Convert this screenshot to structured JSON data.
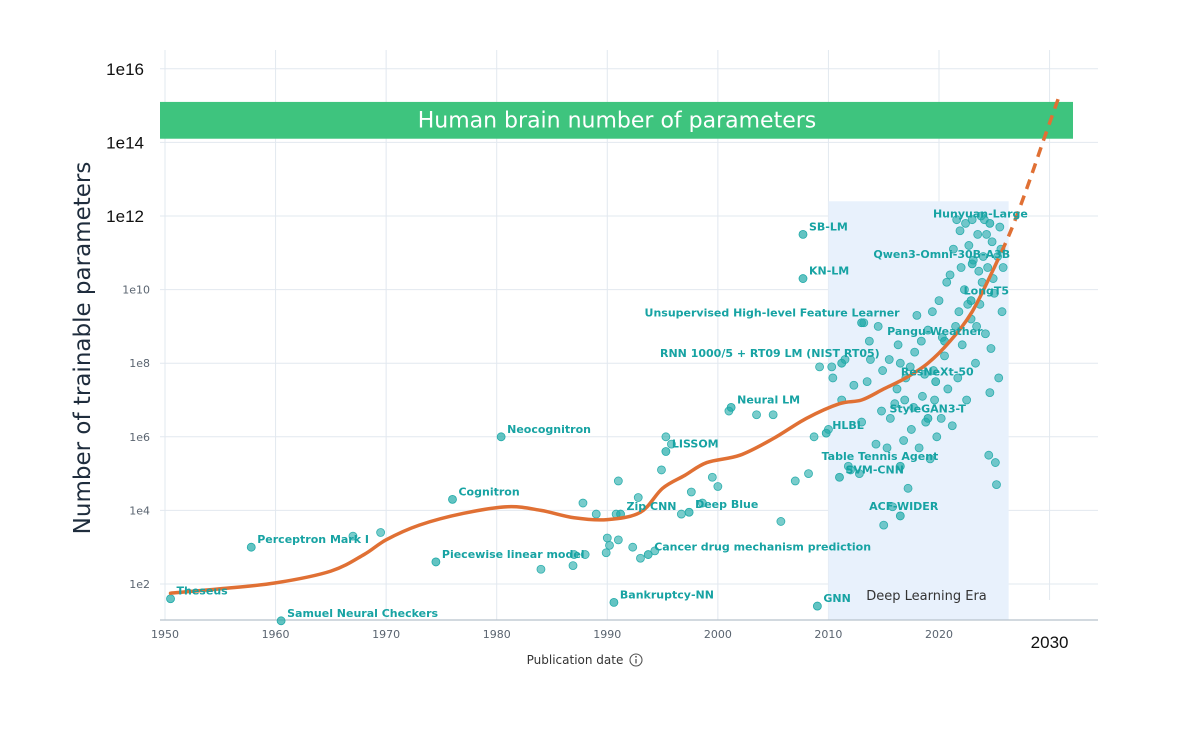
{
  "colors": {
    "point": "#20aaa8",
    "trend": "#e07034",
    "band": "#3ec47e",
    "era": "#e8f1fc",
    "grid": "#e2e8ef"
  },
  "chart_data": {
    "type": "scatter",
    "title": "",
    "xlabel": "Publication date",
    "ylabel": "Number of trainable parameters",
    "xlim": [
      1949,
      2034
    ],
    "ylim_log10": [
      0.95,
      16.45
    ],
    "grid": true,
    "x_ticks": [
      {
        "value": 1950,
        "label": "1950"
      },
      {
        "value": 1960,
        "label": "1960"
      },
      {
        "value": 1970,
        "label": "1970"
      },
      {
        "value": 1980,
        "label": "1980"
      },
      {
        "value": 1990,
        "label": "1990"
      },
      {
        "value": 2000,
        "label": "2000"
      },
      {
        "value": 2010,
        "label": "2010"
      },
      {
        "value": 2020,
        "label": "2020"
      }
    ],
    "x_tick_extra": {
      "value": 2030,
      "label": "2030"
    },
    "y_ticks_small": [
      {
        "log10": 2,
        "label": "1e2"
      },
      {
        "log10": 4,
        "label": "1e4"
      },
      {
        "log10": 6,
        "label": "1e6"
      },
      {
        "log10": 8,
        "label": "1e8"
      },
      {
        "log10": 10,
        "label": "1e10"
      }
    ],
    "y_ticks_big": [
      {
        "log10": 12,
        "label": "1e12"
      },
      {
        "log10": 14,
        "label": "1e14"
      },
      {
        "log10": 16,
        "label": "1e16"
      }
    ],
    "band": {
      "label": "Human brain number of parameters",
      "log10_low": 14.1,
      "log10_high": 15.1
    },
    "era": {
      "label": "Deep Learning Era",
      "x_start": 2010,
      "x_end": 2026.3,
      "log10_top": 12.4
    },
    "labeled_points": [
      {
        "name": "Theseus",
        "year": 1950.5,
        "log10": 1.6
      },
      {
        "name": "Perceptron Mark I",
        "year": 1957.8,
        "log10": 3.0
      },
      {
        "name": "Samuel Neural Checkers",
        "year": 1960.5,
        "log10": 1.0
      },
      {
        "name": "Cognitron",
        "year": 1976.0,
        "log10": 4.3
      },
      {
        "name": "Piecewise linear model",
        "year": 1974.5,
        "log10": 2.6
      },
      {
        "name": "Neocognitron",
        "year": 1980.4,
        "log10": 6.0
      },
      {
        "name": "Zip CNN",
        "year": 1991.2,
        "log10": 3.9
      },
      {
        "name": "LISSOM",
        "year": 1995.3,
        "log10": 5.6
      },
      {
        "name": "Bankruptcy-NN",
        "year": 1990.6,
        "log10": 1.5
      },
      {
        "name": "Cancer drug mechanism prediction",
        "year": 1993.7,
        "log10": 2.8
      },
      {
        "name": "Deep Blue",
        "year": 1997.4,
        "log10": 3.95
      },
      {
        "name": "Neural LM",
        "year": 2001.2,
        "log10": 6.8
      },
      {
        "name": "SVM-CNN",
        "year": 2011.0,
        "log10": 4.9
      },
      {
        "name": "SB-LM",
        "year": 2007.7,
        "log10": 11.5
      },
      {
        "name": "KN-LM",
        "year": 2007.7,
        "log10": 10.3
      },
      {
        "name": "Unsupervised High-level Feature Learner",
        "year": 2013.0,
        "log10": 9.1
      },
      {
        "name": "RNN 1000/5 + RT09 LM (NIST RT05)",
        "year": 2011.2,
        "log10": 8.0
      },
      {
        "name": "HLBL",
        "year": 2009.8,
        "log10": 6.1
      },
      {
        "name": "GNN",
        "year": 2009.0,
        "log10": 1.4
      },
      {
        "name": "Table Tennis Agent",
        "year": 2016.5,
        "log10": 5.2
      },
      {
        "name": "ACF-WIDER",
        "year": 2016.5,
        "log10": 3.85
      },
      {
        "name": "StyleGAN3-T",
        "year": 2019.0,
        "log10": 6.5
      },
      {
        "name": "ResNeXt-50",
        "year": 2019.7,
        "log10": 7.5
      },
      {
        "name": "Pangu-Weather",
        "year": 2020.5,
        "log10": 8.6
      },
      {
        "name": "LongT5",
        "year": 2022.9,
        "log10": 9.7
      },
      {
        "name": "Qwen3-Omni-30B-A3B",
        "year": 2023.0,
        "log10": 10.7
      },
      {
        "name": "Hunyuan-Large",
        "year": 2024.6,
        "log10": 11.8
      }
    ],
    "other_points": [
      [
        1969.5,
        3.4
      ],
      [
        1967,
        3.3
      ],
      [
        1984,
        2.4
      ],
      [
        1986.9,
        2.5
      ],
      [
        1987.0,
        2.8
      ],
      [
        1987.8,
        4.2
      ],
      [
        1988.0,
        2.8
      ],
      [
        1989.0,
        3.9
      ],
      [
        1989.9,
        2.85
      ],
      [
        1990.0,
        3.25
      ],
      [
        1990.2,
        3.05
      ],
      [
        1990.8,
        3.9
      ],
      [
        1991.0,
        3.2
      ],
      [
        1991.0,
        4.8
      ],
      [
        1992.3,
        3.0
      ],
      [
        1992.8,
        4.35
      ],
      [
        1993.0,
        2.7
      ],
      [
        1994.3,
        2.9
      ],
      [
        1994.9,
        5.1
      ],
      [
        1995.3,
        6.0
      ],
      [
        1995.8,
        5.8
      ],
      [
        1996.7,
        3.9
      ],
      [
        1997.6,
        4.5
      ],
      [
        1998.6,
        4.2
      ],
      [
        1999.5,
        4.9
      ],
      [
        2000.0,
        4.65
      ],
      [
        2001.0,
        6.7
      ],
      [
        2003.5,
        6.6
      ],
      [
        2005.0,
        6.6
      ],
      [
        2005.7,
        3.7
      ],
      [
        2007.0,
        4.8
      ],
      [
        2008.2,
        5.0
      ],
      [
        2008.7,
        6.0
      ],
      [
        2009.2,
        7.9
      ],
      [
        2010.0,
        6.2
      ],
      [
        2010.3,
        7.9
      ],
      [
        2010.4,
        7.6
      ],
      [
        2011.2,
        7.0
      ],
      [
        2011.5,
        8.1
      ],
      [
        2011.8,
        5.2
      ],
      [
        2012.0,
        5.1
      ],
      [
        2012.3,
        7.4
      ],
      [
        2012.8,
        5.0
      ],
      [
        2013.0,
        6.4
      ],
      [
        2013.2,
        9.1
      ],
      [
        2013.5,
        7.5
      ],
      [
        2013.8,
        8.1
      ],
      [
        2014.3,
        5.8
      ],
      [
        2014.5,
        9.0
      ],
      [
        2014.8,
        6.7
      ],
      [
        2015.0,
        3.6
      ],
      [
        2015.3,
        5.7
      ],
      [
        2015.5,
        8.1
      ],
      [
        2015.8,
        4.1
      ],
      [
        2016.0,
        6.9
      ],
      [
        2016.2,
        7.3
      ],
      [
        2016.5,
        8.0
      ],
      [
        2016.8,
        5.9
      ],
      [
        2017.0,
        7.6
      ],
      [
        2017.2,
        4.6
      ],
      [
        2017.5,
        6.2
      ],
      [
        2017.8,
        8.3
      ],
      [
        2018.0,
        9.3
      ],
      [
        2018.2,
        5.7
      ],
      [
        2018.5,
        7.1
      ],
      [
        2018.8,
        6.4
      ],
      [
        2019.0,
        8.9
      ],
      [
        2019.2,
        5.4
      ],
      [
        2019.5,
        7.8
      ],
      [
        2019.8,
        6.0
      ],
      [
        2020.0,
        9.7
      ],
      [
        2020.2,
        6.5
      ],
      [
        2020.5,
        8.2
      ],
      [
        2020.8,
        7.3
      ],
      [
        2021.0,
        10.4
      ],
      [
        2021.2,
        6.3
      ],
      [
        2021.5,
        9.0
      ],
      [
        2021.7,
        7.6
      ],
      [
        2021.9,
        11.6
      ],
      [
        2022.1,
        8.5
      ],
      [
        2022.3,
        10.0
      ],
      [
        2022.5,
        7.0
      ],
      [
        2022.7,
        11.2
      ],
      [
        2022.9,
        9.2
      ],
      [
        2023.1,
        10.8
      ],
      [
        2023.3,
        8.0
      ],
      [
        2023.5,
        11.5
      ],
      [
        2023.7,
        9.6
      ],
      [
        2023.9,
        10.2
      ],
      [
        2024.1,
        11.9
      ],
      [
        2024.2,
        8.8
      ],
      [
        2024.4,
        10.6
      ],
      [
        2024.5,
        5.5
      ],
      [
        2024.6,
        7.2
      ],
      [
        2024.8,
        11.3
      ],
      [
        2025.0,
        9.9
      ],
      [
        2025.1,
        5.3
      ],
      [
        2025.3,
        10.9
      ],
      [
        2025.5,
        11.7
      ],
      [
        2025.7,
        9.4
      ],
      [
        2025.2,
        4.7
      ],
      [
        2021.3,
        11.1
      ],
      [
        2022.0,
        10.6
      ],
      [
        2022.6,
        9.6
      ],
      [
        2023.0,
        11.9
      ],
      [
        2023.6,
        10.5
      ],
      [
        2024.3,
        11.5
      ],
      [
        2024.9,
        10.3
      ],
      [
        2025.6,
        11.1
      ],
      [
        2021.8,
        9.4
      ],
      [
        2020.7,
        10.2
      ],
      [
        2019.4,
        9.4
      ],
      [
        2023.4,
        9.0
      ],
      [
        2024.7,
        8.4
      ],
      [
        2025.4,
        7.6
      ],
      [
        2020.3,
        8.7
      ],
      [
        2018.4,
        8.6
      ],
      [
        2017.4,
        7.9
      ],
      [
        2016.9,
        7.0
      ],
      [
        2015.6,
        6.5
      ],
      [
        2014.9,
        7.8
      ],
      [
        2022.4,
        11.8
      ],
      [
        2023.8,
        12.0
      ],
      [
        2021.6,
        11.9
      ],
      [
        2024.0,
        10.9
      ],
      [
        2025.8,
        10.6
      ],
      [
        2019.6,
        7.0
      ],
      [
        2018.7,
        7.7
      ],
      [
        2017.7,
        6.8
      ],
      [
        2016.3,
        8.5
      ],
      [
        2013.7,
        8.6
      ]
    ],
    "trend_line": [
      [
        1950.5,
        1.75
      ],
      [
        1955,
        1.87
      ],
      [
        1960,
        2.03
      ],
      [
        1965,
        2.35
      ],
      [
        1968,
        2.8
      ],
      [
        1970,
        3.2
      ],
      [
        1973,
        3.6
      ],
      [
        1977,
        3.92
      ],
      [
        1981,
        4.1
      ],
      [
        1984,
        4.0
      ],
      [
        1987,
        3.8
      ],
      [
        1990,
        3.75
      ],
      [
        1993,
        3.95
      ],
      [
        1995,
        4.6
      ],
      [
        1997,
        4.95
      ],
      [
        1999,
        5.3
      ],
      [
        2002,
        5.5
      ],
      [
        2005,
        5.95
      ],
      [
        2008,
        6.5
      ],
      [
        2011,
        6.9
      ],
      [
        2013,
        7.0
      ],
      [
        2015,
        7.3
      ],
      [
        2017,
        7.6
      ],
      [
        2019,
        8.0
      ],
      [
        2021,
        8.6
      ],
      [
        2023,
        9.4
      ],
      [
        2025,
        10.6
      ]
    ],
    "trend_projection": [
      [
        2025,
        10.6
      ],
      [
        2026.5,
        11.6
      ],
      [
        2028,
        12.8
      ],
      [
        2029.5,
        14.1
      ],
      [
        2030.8,
        15.2
      ]
    ]
  }
}
